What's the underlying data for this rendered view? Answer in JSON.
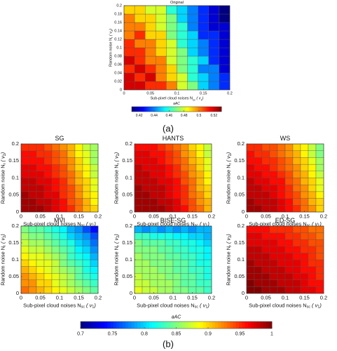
{
  "captions": [
    "(a)",
    "(b)"
  ],
  "chart_data": [
    {
      "type": "heatmap",
      "title": "Original",
      "x_label": [
        "Sub-pixel cloud noises N",
        "sc",
        " ( v",
        "1",
        ")"
      ],
      "y_label": [
        "Random noise N",
        "r",
        " ( v",
        "2",
        ")"
      ],
      "xlim": [
        0,
        0.2
      ],
      "ylim": [
        0,
        0.2
      ],
      "xticks": [
        0,
        0.05,
        0.1,
        0.15,
        0.2
      ],
      "yticks": [
        0,
        0.02,
        0.04,
        0.06,
        0.08,
        0.1,
        0.12,
        0.14,
        0.16,
        0.18,
        0.2
      ],
      "x": [
        0.01,
        0.03,
        0.05,
        0.07,
        0.09,
        0.11,
        0.13,
        0.15,
        0.17,
        0.19
      ],
      "y": [
        0.01,
        0.03,
        0.05,
        0.07,
        0.09,
        0.11,
        0.13,
        0.15,
        0.17,
        0.19
      ],
      "z": [
        [
          0.52,
          0.52,
          0.51,
          0.51,
          0.5,
          0.48,
          0.47,
          0.45,
          0.44,
          0.43
        ],
        [
          0.52,
          0.51,
          0.52,
          0.5,
          0.49,
          0.48,
          0.46,
          0.45,
          0.44,
          0.43
        ],
        [
          0.51,
          0.52,
          0.51,
          0.5,
          0.49,
          0.47,
          0.46,
          0.44,
          0.44,
          0.42
        ],
        [
          0.52,
          0.51,
          0.5,
          0.5,
          0.48,
          0.47,
          0.46,
          0.45,
          0.43,
          0.42
        ],
        [
          0.51,
          0.51,
          0.5,
          0.49,
          0.48,
          0.47,
          0.45,
          0.44,
          0.43,
          0.42
        ],
        [
          0.51,
          0.5,
          0.5,
          0.49,
          0.48,
          0.46,
          0.45,
          0.44,
          0.43,
          0.42
        ],
        [
          0.5,
          0.51,
          0.49,
          0.49,
          0.47,
          0.46,
          0.45,
          0.43,
          0.43,
          0.42
        ],
        [
          0.5,
          0.5,
          0.49,
          0.48,
          0.47,
          0.46,
          0.44,
          0.43,
          0.42,
          0.42
        ],
        [
          0.5,
          0.49,
          0.49,
          0.48,
          0.47,
          0.45,
          0.44,
          0.43,
          0.42,
          0.41
        ],
        [
          0.49,
          0.49,
          0.48,
          0.48,
          0.46,
          0.45,
          0.44,
          0.43,
          0.42,
          0.41
        ]
      ]
    },
    {
      "type": "colorbar",
      "label": "aAC",
      "lim": [
        0.41,
        0.53
      ],
      "ticks": [
        0.42,
        0.44,
        0.46,
        0.48,
        0.5,
        0.52
      ]
    },
    {
      "type": "heatmap",
      "title": "SG",
      "x_label": [
        "Sub-pixel cloud noises N",
        "sc",
        " ( v",
        "1",
        ")"
      ],
      "y_label": [
        "Random noise N",
        "r",
        " ( v",
        "2",
        ")"
      ],
      "xlim": [
        0,
        0.2
      ],
      "ylim": [
        0,
        0.2
      ],
      "xticks": [
        0,
        0.05,
        0.1,
        0.15,
        0.2
      ],
      "yticks": [
        0,
        0.05,
        0.1,
        0.15,
        0.2
      ],
      "x": [
        0.01,
        0.03,
        0.05,
        0.07,
        0.09,
        0.11,
        0.13,
        0.15,
        0.17,
        0.19
      ],
      "y": [
        0.01,
        0.03,
        0.05,
        0.07,
        0.09,
        0.11,
        0.13,
        0.15,
        0.17,
        0.19
      ],
      "z": [
        [
          0.99,
          0.99,
          0.99,
          0.98,
          0.97,
          0.96,
          0.95,
          0.93,
          0.91,
          0.9
        ],
        [
          0.99,
          0.99,
          0.98,
          0.98,
          0.97,
          0.96,
          0.94,
          0.93,
          0.91,
          0.89
        ],
        [
          0.99,
          0.98,
          0.98,
          0.97,
          0.97,
          0.95,
          0.94,
          0.92,
          0.9,
          0.89
        ],
        [
          0.98,
          0.98,
          0.98,
          0.97,
          0.96,
          0.95,
          0.94,
          0.92,
          0.9,
          0.88
        ],
        [
          0.98,
          0.98,
          0.97,
          0.97,
          0.96,
          0.95,
          0.93,
          0.91,
          0.9,
          0.88
        ],
        [
          0.97,
          0.97,
          0.97,
          0.96,
          0.95,
          0.94,
          0.93,
          0.91,
          0.89,
          0.87
        ],
        [
          0.97,
          0.97,
          0.96,
          0.96,
          0.95,
          0.94,
          0.92,
          0.9,
          0.89,
          0.87
        ],
        [
          0.96,
          0.96,
          0.96,
          0.95,
          0.94,
          0.93,
          0.92,
          0.9,
          0.88,
          0.86
        ],
        [
          0.96,
          0.96,
          0.95,
          0.95,
          0.94,
          0.93,
          0.91,
          0.89,
          0.88,
          0.86
        ],
        [
          0.95,
          0.95,
          0.95,
          0.94,
          0.93,
          0.92,
          0.91,
          0.89,
          0.87,
          0.86
        ]
      ]
    },
    {
      "type": "heatmap",
      "title": "HANTS",
      "x_label": [
        "Sub-pixel cloud noises N",
        "sc",
        " ( v",
        "1",
        ")"
      ],
      "y_label": [
        "Random noise N",
        "r",
        " ( v",
        "2",
        ")"
      ],
      "xlim": [
        0,
        0.2
      ],
      "ylim": [
        0,
        0.2
      ],
      "xticks": [
        0,
        0.05,
        0.1,
        0.15,
        0.2
      ],
      "yticks": [
        0,
        0.05,
        0.1,
        0.15,
        0.2
      ],
      "x": [
        0.01,
        0.03,
        0.05,
        0.07,
        0.09,
        0.11,
        0.13,
        0.15,
        0.17,
        0.19
      ],
      "y": [
        0.01,
        0.03,
        0.05,
        0.07,
        0.09,
        0.11,
        0.13,
        0.15,
        0.17,
        0.19
      ],
      "z": [
        [
          0.99,
          0.99,
          0.99,
          0.99,
          0.98,
          0.97,
          0.96,
          0.94,
          0.93,
          0.91
        ],
        [
          0.99,
          0.99,
          0.99,
          0.98,
          0.98,
          0.97,
          0.95,
          0.94,
          0.92,
          0.91
        ],
        [
          0.99,
          0.99,
          0.98,
          0.98,
          0.97,
          0.96,
          0.95,
          0.93,
          0.92,
          0.9
        ],
        [
          0.99,
          0.98,
          0.98,
          0.98,
          0.97,
          0.96,
          0.95,
          0.93,
          0.91,
          0.9
        ],
        [
          0.98,
          0.98,
          0.98,
          0.97,
          0.97,
          0.96,
          0.94,
          0.93,
          0.91,
          0.89
        ],
        [
          0.98,
          0.98,
          0.97,
          0.97,
          0.96,
          0.95,
          0.94,
          0.92,
          0.91,
          0.89
        ],
        [
          0.98,
          0.97,
          0.97,
          0.97,
          0.96,
          0.95,
          0.93,
          0.92,
          0.9,
          0.88
        ],
        [
          0.97,
          0.97,
          0.97,
          0.96,
          0.95,
          0.94,
          0.93,
          0.91,
          0.9,
          0.88
        ],
        [
          0.97,
          0.97,
          0.96,
          0.96,
          0.95,
          0.94,
          0.92,
          0.91,
          0.89,
          0.87
        ],
        [
          0.96,
          0.96,
          0.96,
          0.95,
          0.94,
          0.93,
          0.92,
          0.9,
          0.89,
          0.87
        ]
      ]
    },
    {
      "type": "heatmap",
      "title": "WS",
      "x_label": [
        "Sub-pixel cloud noises N",
        "sc",
        " ( v",
        "1",
        ")"
      ],
      "y_label": [
        "Random noise N",
        "r",
        " ( v",
        "2",
        ")"
      ],
      "xlim": [
        0,
        0.2
      ],
      "ylim": [
        0,
        0.2
      ],
      "xticks": [
        0,
        0.05,
        0.1,
        0.15,
        0.2
      ],
      "yticks": [
        0,
        0.05,
        0.1,
        0.15,
        0.2
      ],
      "x": [
        0.01,
        0.03,
        0.05,
        0.07,
        0.09,
        0.11,
        0.13,
        0.15,
        0.17,
        0.19
      ],
      "y": [
        0.01,
        0.03,
        0.05,
        0.07,
        0.09,
        0.11,
        0.13,
        0.15,
        0.17,
        0.19
      ],
      "z": [
        [
          0.99,
          0.99,
          0.98,
          0.98,
          0.97,
          0.96,
          0.95,
          0.93,
          0.92,
          0.9
        ],
        [
          0.99,
          0.98,
          0.98,
          0.98,
          0.97,
          0.96,
          0.94,
          0.93,
          0.91,
          0.9
        ],
        [
          0.98,
          0.98,
          0.98,
          0.97,
          0.96,
          0.95,
          0.94,
          0.92,
          0.91,
          0.89
        ],
        [
          0.98,
          0.98,
          0.97,
          0.97,
          0.96,
          0.95,
          0.93,
          0.92,
          0.9,
          0.88
        ],
        [
          0.98,
          0.97,
          0.97,
          0.96,
          0.96,
          0.94,
          0.93,
          0.91,
          0.9,
          0.88
        ],
        [
          0.97,
          0.97,
          0.96,
          0.96,
          0.95,
          0.94,
          0.92,
          0.91,
          0.89,
          0.87
        ],
        [
          0.97,
          0.96,
          0.96,
          0.95,
          0.94,
          0.93,
          0.92,
          0.9,
          0.89,
          0.86
        ],
        [
          0.96,
          0.96,
          0.95,
          0.95,
          0.94,
          0.93,
          0.91,
          0.9,
          0.88,
          0.86
        ],
        [
          0.96,
          0.95,
          0.95,
          0.94,
          0.93,
          0.92,
          0.91,
          0.89,
          0.87,
          0.85
        ],
        [
          0.95,
          0.95,
          0.94,
          0.94,
          0.93,
          0.92,
          0.9,
          0.89,
          0.87,
          0.85
        ]
      ]
    },
    {
      "type": "heatmap",
      "title": "MVI",
      "x_label": [
        "Sub-pixel cloud noises N",
        "sc",
        " ( v",
        "1",
        ")"
      ],
      "y_label": [
        "Random noise N",
        "r",
        " ( v",
        "2",
        ")"
      ],
      "xlim": [
        0,
        0.2
      ],
      "ylim": [
        0,
        0.2
      ],
      "xticks": [
        0,
        0.05,
        0.1,
        0.15,
        0.2
      ],
      "yticks": [
        0,
        0.05,
        0.1,
        0.15,
        0.2
      ],
      "x": [
        0.01,
        0.03,
        0.05,
        0.07,
        0.09,
        0.11,
        0.13,
        0.15,
        0.17,
        0.19
      ],
      "y": [
        0.01,
        0.03,
        0.05,
        0.07,
        0.09,
        0.11,
        0.13,
        0.15,
        0.17,
        0.19
      ],
      "z": [
        [
          0.93,
          0.92,
          0.91,
          0.9,
          0.89,
          0.88,
          0.87,
          0.86,
          0.85,
          0.84
        ],
        [
          0.92,
          0.92,
          0.9,
          0.9,
          0.88,
          0.87,
          0.86,
          0.85,
          0.84,
          0.83
        ],
        [
          0.92,
          0.91,
          0.9,
          0.89,
          0.88,
          0.87,
          0.86,
          0.84,
          0.83,
          0.82
        ],
        [
          0.91,
          0.9,
          0.89,
          0.88,
          0.87,
          0.86,
          0.85,
          0.84,
          0.82,
          0.81
        ],
        [
          0.9,
          0.89,
          0.88,
          0.88,
          0.87,
          0.85,
          0.84,
          0.83,
          0.82,
          0.8
        ],
        [
          0.89,
          0.88,
          0.88,
          0.87,
          0.86,
          0.85,
          0.83,
          0.82,
          0.81,
          0.79
        ],
        [
          0.88,
          0.87,
          0.87,
          0.86,
          0.85,
          0.84,
          0.83,
          0.81,
          0.8,
          0.78
        ],
        [
          0.87,
          0.86,
          0.86,
          0.85,
          0.84,
          0.83,
          0.82,
          0.8,
          0.79,
          0.77
        ],
        [
          0.86,
          0.85,
          0.85,
          0.84,
          0.83,
          0.82,
          0.8,
          0.79,
          0.78,
          0.76
        ],
        [
          0.85,
          0.84,
          0.84,
          0.83,
          0.82,
          0.81,
          0.79,
          0.78,
          0.76,
          0.74
        ]
      ]
    },
    {
      "type": "heatmap",
      "title": "BISE-SG",
      "x_label": [
        "Sub-pixel cloud noises N",
        "sc",
        " ( v",
        "1",
        ")"
      ],
      "y_label": [
        "Random noise N",
        "r",
        " ( v",
        "2",
        ")"
      ],
      "xlim": [
        0,
        0.2
      ],
      "ylim": [
        0,
        0.2
      ],
      "xticks": [
        0,
        0.05,
        0.1,
        0.15,
        0.2
      ],
      "yticks": [
        0,
        0.05,
        0.1,
        0.15,
        0.2
      ],
      "x": [
        0.01,
        0.03,
        0.05,
        0.07,
        0.09,
        0.11,
        0.13,
        0.15,
        0.17,
        0.19
      ],
      "y": [
        0.01,
        0.03,
        0.05,
        0.07,
        0.09,
        0.11,
        0.13,
        0.15,
        0.17,
        0.19
      ],
      "z": [
        [
          0.88,
          0.87,
          0.87,
          0.86,
          0.86,
          0.85,
          0.85,
          0.84,
          0.84,
          0.83
        ],
        [
          0.87,
          0.87,
          0.86,
          0.86,
          0.86,
          0.85,
          0.84,
          0.84,
          0.83,
          0.83
        ],
        [
          0.87,
          0.86,
          0.86,
          0.86,
          0.85,
          0.85,
          0.84,
          0.84,
          0.83,
          0.82
        ],
        [
          0.86,
          0.86,
          0.86,
          0.85,
          0.85,
          0.84,
          0.84,
          0.83,
          0.83,
          0.82
        ],
        [
          0.86,
          0.86,
          0.85,
          0.85,
          0.85,
          0.84,
          0.84,
          0.83,
          0.82,
          0.82
        ],
        [
          0.86,
          0.85,
          0.85,
          0.85,
          0.84,
          0.84,
          0.83,
          0.83,
          0.82,
          0.81
        ],
        [
          0.85,
          0.85,
          0.85,
          0.84,
          0.84,
          0.83,
          0.83,
          0.82,
          0.82,
          0.81
        ],
        [
          0.85,
          0.84,
          0.84,
          0.84,
          0.83,
          0.83,
          0.82,
          0.82,
          0.81,
          0.8
        ],
        [
          0.83,
          0.83,
          0.82,
          0.82,
          0.82,
          0.81,
          0.81,
          0.8,
          0.8,
          0.79
        ],
        [
          0.79,
          0.78,
          0.79,
          0.78,
          0.79,
          0.78,
          0.79,
          0.78,
          0.79,
          0.79
        ]
      ]
    },
    {
      "type": "heatmap",
      "title": "ED-SG",
      "x_label": [
        "Sub-pixel cloud noises N",
        "sc",
        " ( v",
        "1",
        ")"
      ],
      "y_label": [
        "Random noise N",
        "r",
        " ( v",
        "2",
        ")"
      ],
      "xlim": [
        0,
        0.2
      ],
      "ylim": [
        0,
        0.2
      ],
      "xticks": [
        0,
        0.05,
        0.1,
        0.15,
        0.2
      ],
      "yticks": [
        0,
        0.05,
        0.1,
        0.15,
        0.2
      ],
      "x": [
        0.01,
        0.03,
        0.05,
        0.07,
        0.09,
        0.11,
        0.13,
        0.15,
        0.17,
        0.19
      ],
      "y": [
        0.01,
        0.03,
        0.05,
        0.07,
        0.09,
        0.11,
        0.13,
        0.15,
        0.17,
        0.19
      ],
      "z": [
        [
          1,
          1,
          0.99,
          0.99,
          0.99,
          0.98,
          0.98,
          0.97,
          0.97,
          0.96
        ],
        [
          1,
          0.99,
          0.99,
          0.99,
          0.98,
          0.98,
          0.98,
          0.97,
          0.96,
          0.96
        ],
        [
          0.99,
          0.99,
          0.99,
          0.98,
          0.98,
          0.98,
          0.97,
          0.97,
          0.96,
          0.95
        ],
        [
          0.99,
          0.99,
          0.98,
          0.98,
          0.98,
          0.97,
          0.97,
          0.96,
          0.96,
          0.95
        ],
        [
          0.99,
          0.98,
          0.98,
          0.98,
          0.97,
          0.97,
          0.97,
          0.96,
          0.95,
          0.95
        ],
        [
          0.98,
          0.98,
          0.98,
          0.97,
          0.97,
          0.97,
          0.96,
          0.96,
          0.95,
          0.94
        ],
        [
          0.98,
          0.98,
          0.97,
          0.97,
          0.97,
          0.96,
          0.96,
          0.95,
          0.95,
          0.94
        ],
        [
          0.97,
          0.97,
          0.97,
          0.97,
          0.96,
          0.96,
          0.95,
          0.95,
          0.94,
          0.94
        ],
        [
          0.97,
          0.97,
          0.96,
          0.96,
          0.96,
          0.95,
          0.95,
          0.94,
          0.94,
          0.93
        ],
        [
          0.96,
          0.96,
          0.96,
          0.95,
          0.95,
          0.95,
          0.94,
          0.94,
          0.93,
          0.93
        ]
      ]
    },
    {
      "type": "colorbar",
      "label": "aAC",
      "lim": [
        0.7,
        1
      ],
      "ticks": [
        0.7,
        0.75,
        0.8,
        0.85,
        0.9,
        0.95,
        1
      ]
    }
  ]
}
